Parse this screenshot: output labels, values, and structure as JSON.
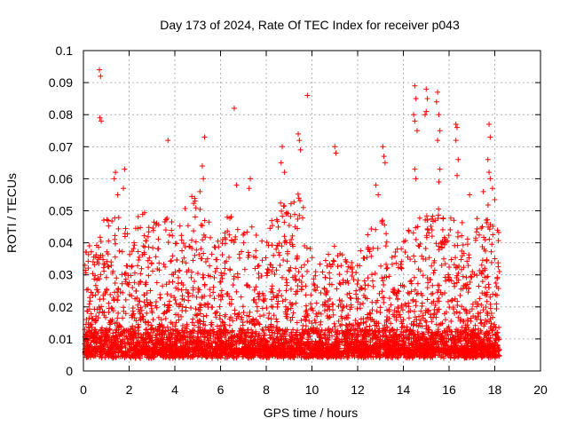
{
  "chart_data": {
    "type": "scatter",
    "title": "Day 173 of 2024, Rate Of TEC Index for receiver p043",
    "xlabel": "GPS time / hours",
    "ylabel": "ROTI / TECUs",
    "xlim": [
      0,
      20
    ],
    "ylim": [
      0,
      0.1
    ],
    "xticks": [
      0,
      2,
      4,
      6,
      8,
      10,
      12,
      14,
      16,
      18,
      20
    ],
    "xtick_labels": [
      "0",
      "2",
      "4",
      "6",
      "8",
      "10",
      "12",
      "14",
      "16",
      "18",
      "20"
    ],
    "yticks": [
      0,
      0.01,
      0.02,
      0.03,
      0.04,
      0.05,
      0.06,
      0.07,
      0.08,
      0.09,
      0.1
    ],
    "ytick_labels": [
      "0",
      "0.01",
      "0.02",
      "0.03",
      "0.04",
      "0.05",
      "0.06",
      "0.07",
      "0.08",
      "0.09",
      "0.1"
    ],
    "grid": true,
    "marker": "plus",
    "color": "#ff0000",
    "series": [
      {
        "name": "ROTI",
        "points": [
          [
            0.7,
            0.094
          ],
          [
            0.75,
            0.092
          ],
          [
            0.72,
            0.079
          ],
          [
            0.78,
            0.078
          ],
          [
            1.4,
            0.062
          ],
          [
            1.35,
            0.06
          ],
          [
            1.5,
            0.055
          ],
          [
            1.8,
            0.063
          ],
          [
            1.75,
            0.057
          ],
          [
            3.7,
            0.072
          ],
          [
            5.3,
            0.073
          ],
          [
            5.2,
            0.064
          ],
          [
            5.25,
            0.06
          ],
          [
            5.1,
            0.056
          ],
          [
            6.6,
            0.082
          ],
          [
            6.7,
            0.058
          ],
          [
            7.3,
            0.06
          ],
          [
            7.25,
            0.057
          ],
          [
            8.7,
            0.07
          ],
          [
            8.65,
            0.065
          ],
          [
            8.8,
            0.062
          ],
          [
            9.4,
            0.074
          ],
          [
            9.45,
            0.072
          ],
          [
            9.5,
            0.069
          ],
          [
            9.8,
            0.086
          ],
          [
            11.0,
            0.07
          ],
          [
            11.05,
            0.068
          ],
          [
            13.1,
            0.07
          ],
          [
            13.15,
            0.067
          ],
          [
            13.2,
            0.065
          ],
          [
            12.8,
            0.058
          ],
          [
            12.9,
            0.055
          ],
          [
            14.5,
            0.089
          ],
          [
            14.55,
            0.085
          ],
          [
            14.45,
            0.08
          ],
          [
            14.5,
            0.078
          ],
          [
            14.6,
            0.075
          ],
          [
            15.0,
            0.088
          ],
          [
            15.05,
            0.085
          ],
          [
            15.0,
            0.081
          ],
          [
            14.95,
            0.08
          ],
          [
            15.5,
            0.087
          ],
          [
            15.45,
            0.084
          ],
          [
            15.55,
            0.08
          ],
          [
            15.6,
            0.075
          ],
          [
            15.5,
            0.072
          ],
          [
            14.5,
            0.063
          ],
          [
            14.55,
            0.06
          ],
          [
            15.6,
            0.063
          ],
          [
            15.55,
            0.059
          ],
          [
            16.3,
            0.077
          ],
          [
            16.35,
            0.076
          ],
          [
            16.3,
            0.072
          ],
          [
            16.4,
            0.066
          ],
          [
            16.35,
            0.061
          ],
          [
            17.75,
            0.077
          ],
          [
            17.8,
            0.073
          ],
          [
            17.7,
            0.066
          ],
          [
            17.75,
            0.062
          ],
          [
            17.8,
            0.06
          ],
          [
            16.9,
            0.055
          ],
          [
            17.5,
            0.056
          ],
          [
            17.9,
            0.057
          ]
        ]
      }
    ]
  }
}
